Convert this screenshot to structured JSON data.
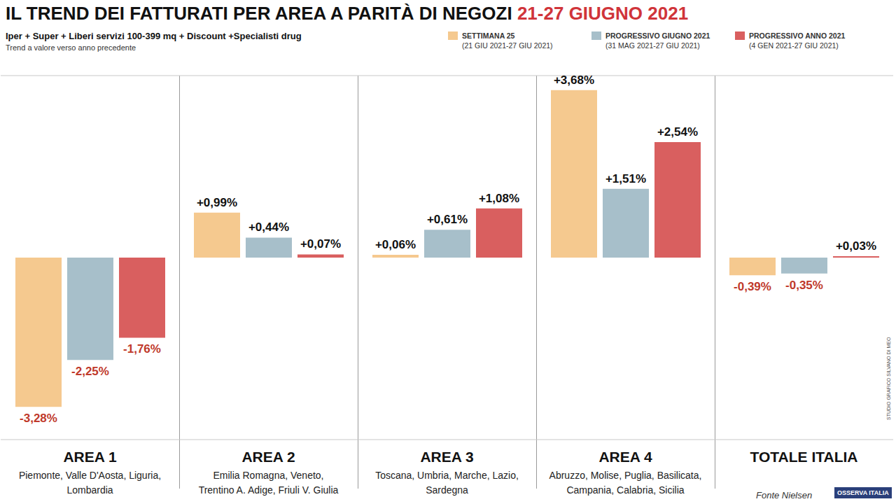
{
  "chart_data": {
    "type": "bar",
    "title": "IL TREND DEI FATTURATI PER AREA A PARITÀ DI NEGOZI",
    "title_highlight": "21-27 GIUGNO 2021",
    "subtitle": "Iper + Super + Liberi servizi 100-399 mq + Discount +Specialisti drug",
    "note": "Trend a valore verso anno precedente",
    "source": "Fonte Nielsen",
    "logo": "OSSERVA ITALIA",
    "credit": "STUDIO GRAFICO SILVANO DI MEO",
    "categories": [
      "AREA 1",
      "AREA 2",
      "AREA 3",
      "AREA 4",
      "TOTALE ITALIA"
    ],
    "category_subtitles": [
      [
        "Piemonte, Valle D'Aosta, Liguria,",
        "Lombardia"
      ],
      [
        "Emilia Romagna, Veneto,",
        "Trentino A. Adige, Friuli V. Giulia"
      ],
      [
        "Toscana, Umbria, Marche, Lazio,",
        "Sardegna"
      ],
      [
        "Abruzzo, Molise, Puglia, Basilicata,",
        "Campania, Calabria, Sicilia"
      ],
      []
    ],
    "series": [
      {
        "name": "SETTIMANA 25",
        "period": "(21 GIU 2021-27 GIU 2021)",
        "color": "#f5c98f",
        "values": [
          -3.28,
          0.99,
          0.06,
          3.68,
          -0.39
        ],
        "value_labels": [
          "-3,28%",
          "+0,99%",
          "+0,06%",
          "+3,68%",
          "-0,39%"
        ]
      },
      {
        "name": "PROGRESSIVO GIUGNO 2021",
        "period": "(31 MAG 2021-27 GIU 2021)",
        "color": "#a7bfca",
        "values": [
          -2.25,
          0.44,
          0.61,
          1.51,
          -0.35
        ],
        "value_labels": [
          "-2,25%",
          "+0,44%",
          "+0,61%",
          "+1,51%",
          "-0,35%"
        ]
      },
      {
        "name": "PROGRESSIVO ANNO 2021",
        "period": "(4 GEN 2021-27 GIU 2021)",
        "color": "#d95f5f",
        "values": [
          -1.76,
          0.07,
          1.08,
          2.54,
          0.03
        ],
        "value_labels": [
          "-1,76%",
          "+0,07%",
          "+1,08%",
          "+2,54%",
          "+0,03%"
        ]
      }
    ],
    "ylim": [
      -4,
      4
    ],
    "yticks": [
      -4,
      -3,
      -2,
      -1,
      0,
      1,
      2,
      3,
      4
    ],
    "grid": true,
    "tick_labels": false,
    "data_labels": true,
    "legend": "top-right"
  }
}
